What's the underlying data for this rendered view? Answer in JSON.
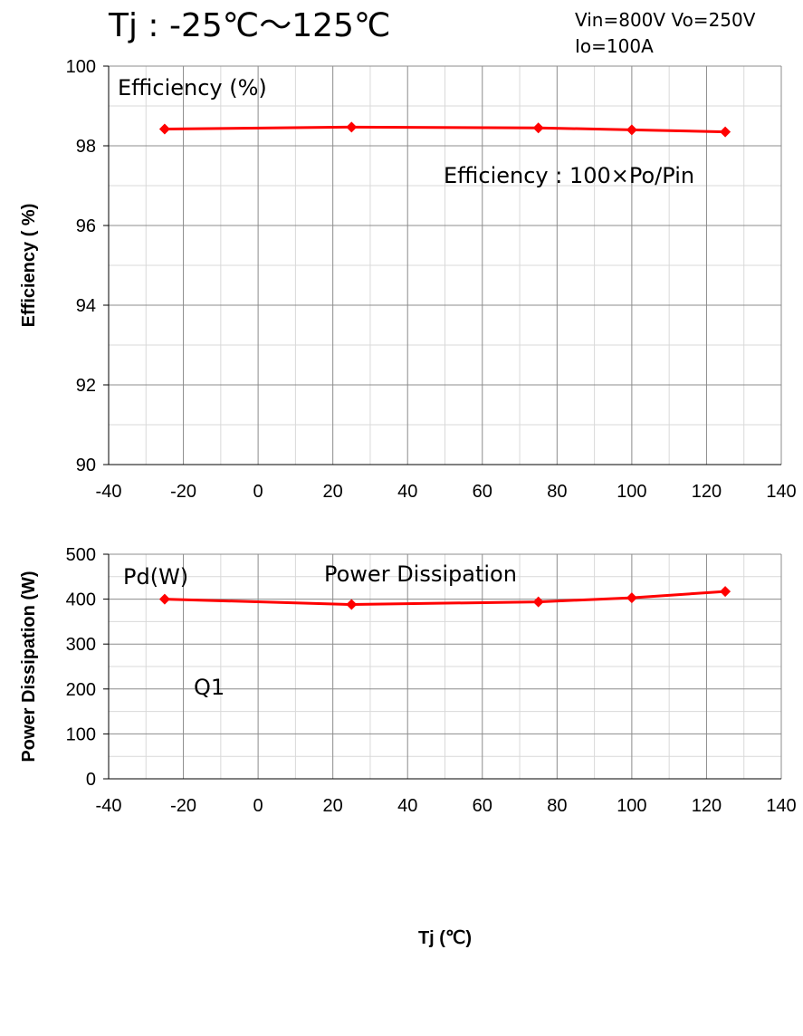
{
  "header": {
    "title": "Tj : -25℃～125℃",
    "conditions_line1": "Vin=800V Vo=250V",
    "conditions_line2": "Io=100A"
  },
  "chart_data": [
    {
      "type": "line",
      "ylabel": "Efficiency ( %)",
      "xlabel": "",
      "annotations": [
        "Efficiency (%)",
        "Efficiency : 100×Po/Pin"
      ],
      "xlim": [
        -40,
        140
      ],
      "ylim": [
        90,
        100
      ],
      "x_ticks": [
        -40,
        -20,
        0,
        20,
        40,
        60,
        80,
        100,
        120,
        140
      ],
      "y_ticks": [
        90,
        92,
        94,
        96,
        98,
        100
      ],
      "grid": true,
      "color": "#ff0000",
      "series": [
        {
          "x": [
            -25,
            25,
            75,
            100,
            125
          ],
          "values": [
            98.42,
            98.47,
            98.45,
            98.4,
            98.35
          ]
        }
      ]
    },
    {
      "type": "line",
      "ylabel": "Power Dissipation (W)",
      "xlabel": "Tj (℃)",
      "annotations": [
        "Pd(W)",
        "Power Dissipation",
        "Q1"
      ],
      "xlim": [
        -40,
        140
      ],
      "ylim": [
        0,
        500
      ],
      "x_ticks": [
        -40,
        -20,
        0,
        20,
        40,
        60,
        80,
        100,
        120,
        140
      ],
      "y_ticks": [
        0,
        100,
        200,
        300,
        400,
        500
      ],
      "grid": true,
      "color": "#ff0000",
      "series": [
        {
          "x": [
            -25,
            25,
            75,
            100,
            125
          ],
          "values": [
            400,
            388,
            394,
            403,
            417
          ]
        }
      ]
    }
  ]
}
